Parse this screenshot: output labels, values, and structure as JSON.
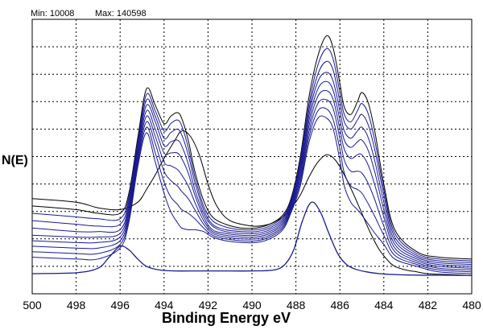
{
  "header": {
    "min_label": "Min: 10008",
    "max_label": "Max: 140598"
  },
  "chart_data": {
    "type": "line",
    "xlabel": "Binding Energy eV",
    "ylabel": "N(E)",
    "xlim": [
      500,
      480
    ],
    "ylim": [
      0,
      150000
    ],
    "x_reversed": true,
    "grid": true,
    "x_ticks": [
      500,
      498,
      496,
      494,
      492,
      490,
      488,
      486,
      484,
      482,
      480
    ],
    "line_colors": [
      "#000000",
      "#1a1a90"
    ],
    "series": [
      {
        "x": [
          500,
          498,
          497,
          496,
          495.2,
          494.8,
          494.4,
          494,
          493.5,
          493.2,
          492.8,
          492.4,
          492,
          491.6,
          491,
          490,
          489.4,
          489,
          488.6,
          488.2,
          487.8,
          487.4,
          487,
          486.6,
          486.2,
          485.8,
          485.4,
          485,
          484.6,
          484.2,
          483.8,
          483.5,
          483,
          482.5,
          482,
          481,
          480
        ],
        "y": [
          52000,
          50000,
          47000,
          46000,
          50000,
          57000,
          65000,
          74000,
          84000,
          89000,
          86000,
          76000,
          60000,
          48000,
          40000,
          37000,
          37500,
          39000,
          42000,
          47000,
          54000,
          64000,
          72000,
          76000,
          73000,
          65000,
          55000,
          44000,
          33000,
          24000,
          18000,
          15000,
          13000,
          12000,
          11000,
          10500,
          10000
        ]
      },
      {
        "x": [
          500,
          498,
          497,
          496,
          495.6,
          495.2,
          494.8,
          494.4,
          494,
          493.7,
          493.4,
          493.2,
          492.9,
          492.6,
          492.2,
          491.8,
          491.2,
          490.5,
          489.8,
          489.2,
          488.6,
          488.2,
          487.8,
          487.4,
          487,
          486.6,
          486.3,
          486,
          485.8,
          485.5,
          485.2,
          485,
          484.7,
          484.4,
          484,
          483.5,
          482.5,
          481.5,
          480
        ],
        "y": [
          48000,
          46000,
          44000,
          44000,
          55000,
          85000,
          112000,
          103000,
          93000,
          97000,
          99000,
          96000,
          84000,
          67000,
          51000,
          42000,
          38000,
          36000,
          36000,
          38000,
          43000,
          53000,
          75000,
          108000,
          130000,
          141000,
          134000,
          115000,
          102000,
          98000,
          105000,
          110000,
          104000,
          88000,
          60000,
          35000,
          23000,
          20000,
          19000
        ]
      },
      {
        "x": [
          500,
          498,
          497,
          496,
          495.6,
          495.2,
          494.8,
          494.4,
          494,
          493.7,
          493.4,
          493.2,
          492.9,
          492.6,
          492.2,
          491.8,
          491.2,
          490.5,
          489.8,
          489.2,
          488.6,
          488.2,
          487.8,
          487.4,
          487,
          486.6,
          486.3,
          486,
          485.8,
          485.5,
          485.2,
          485,
          484.7,
          484.4,
          484,
          483.5,
          482.5,
          481.5,
          480
        ],
        "y": [
          44000,
          42000,
          41000,
          41000,
          53000,
          83000,
          109000,
          100000,
          89000,
          93000,
          95000,
          92000,
          80000,
          64000,
          48000,
          40000,
          36500,
          35000,
          35000,
          37000,
          42000,
          52000,
          73000,
          104000,
          125000,
          134000,
          128000,
          110000,
          98000,
          94000,
          100000,
          104000,
          98000,
          83000,
          57000,
          33000,
          22000,
          19000,
          18000
        ]
      },
      {
        "x": [
          500,
          498,
          497,
          496,
          495.6,
          495.2,
          494.8,
          494.4,
          494,
          493.7,
          493.4,
          493.2,
          492.9,
          492.6,
          492.2,
          491.8,
          491.2,
          490.5,
          489.8,
          489.2,
          488.6,
          488.2,
          487.8,
          487.4,
          487,
          486.6,
          486.3,
          486,
          485.8,
          485.5,
          485.2,
          485,
          484.7,
          484.4,
          484,
          483.5,
          482.5,
          481.5,
          480
        ],
        "y": [
          40000,
          38000,
          37000,
          38000,
          51000,
          81000,
          106000,
          97000,
          85000,
          88000,
          90000,
          87000,
          76000,
          61000,
          46000,
          38000,
          35000,
          34000,
          34000,
          36000,
          41000,
          51000,
          71000,
          101000,
          120000,
          127000,
          122000,
          105000,
          94000,
          90000,
          95000,
          98000,
          92000,
          78000,
          54000,
          31000,
          21000,
          18000,
          17000
        ]
      },
      {
        "x": [
          500,
          498,
          497,
          496,
          495.6,
          495.2,
          494.8,
          494.4,
          494,
          493.7,
          493.4,
          493.2,
          492.9,
          492.6,
          492.2,
          491.8,
          491.2,
          490.5,
          489.8,
          489.2,
          488.6,
          488.2,
          487.8,
          487.4,
          487,
          486.6,
          486.3,
          486,
          485.8,
          485.5,
          485.2,
          485,
          484.7,
          484.4,
          484,
          483.5,
          482.5,
          481.5,
          480
        ],
        "y": [
          36000,
          34000,
          34000,
          35000,
          49000,
          79000,
          103000,
          94000,
          81000,
          83000,
          84000,
          81000,
          71000,
          57000,
          44000,
          37000,
          34000,
          33000,
          33000,
          35000,
          40000,
          50000,
          69000,
          98000,
          116000,
          121000,
          116000,
          100000,
          89000,
          85000,
          89000,
          91000,
          85000,
          72000,
          50000,
          29000,
          20000,
          17000,
          16000
        ]
      },
      {
        "x": [
          500,
          498,
          497,
          496,
          495.6,
          495.2,
          494.8,
          494.4,
          494,
          493.7,
          493.4,
          493.2,
          492.9,
          492.6,
          492.2,
          491.8,
          491.2,
          490.5,
          489.8,
          489.2,
          488.6,
          488.2,
          487.8,
          487.4,
          487,
          486.6,
          486.3,
          486,
          485.8,
          485.5,
          485.2,
          485,
          484.7,
          484.4,
          484,
          483.5,
          482.5,
          481.5,
          480
        ],
        "y": [
          32000,
          31000,
          31000,
          33000,
          47000,
          77000,
          100000,
          90000,
          77000,
          77000,
          77000,
          74000,
          66000,
          54000,
          42000,
          35000,
          33000,
          32000,
          32000,
          34000,
          39000,
          49000,
          67000,
          95000,
          112000,
          116000,
          111000,
          95000,
          84000,
          80000,
          83000,
          84000,
          78000,
          66000,
          46000,
          27000,
          19000,
          16000,
          15000
        ]
      },
      {
        "x": [
          500,
          498,
          497,
          496,
          495.6,
          495.2,
          494.8,
          494.4,
          494,
          493.7,
          493.4,
          493.2,
          492.9,
          492.6,
          492.2,
          491.8,
          491.2,
          490.5,
          489.8,
          489.2,
          488.6,
          488.2,
          487.8,
          487.4,
          487,
          486.6,
          486.3,
          486,
          485.8,
          485.5,
          485.2,
          485,
          484.7,
          484.4,
          484,
          483.5,
          482.5,
          481.5,
          480
        ],
        "y": [
          29000,
          28000,
          28000,
          31000,
          45000,
          75000,
          97000,
          86000,
          72000,
          70000,
          68000,
          65000,
          59000,
          50000,
          40000,
          34000,
          32000,
          31000,
          31000,
          33000,
          38000,
          48000,
          65000,
          92000,
          108000,
          111000,
          106000,
          90000,
          79000,
          74000,
          76000,
          76000,
          70000,
          59000,
          42000,
          25000,
          18000,
          15000,
          14000
        ]
      },
      {
        "x": [
          500,
          498,
          497,
          496,
          495.6,
          495.2,
          494.8,
          494.4,
          494,
          493.7,
          493.4,
          493.2,
          492.9,
          492.6,
          492.2,
          491.8,
          491.2,
          490.5,
          489.8,
          489.2,
          488.6,
          488.2,
          487.8,
          487.4,
          487,
          486.6,
          486.3,
          486,
          485.8,
          485.5,
          485.2,
          485,
          484.7,
          484.4,
          484,
          483.5,
          482.5,
          481.5,
          480
        ],
        "y": [
          26000,
          25000,
          25000,
          29000,
          43000,
          73000,
          94000,
          82000,
          67000,
          62000,
          59000,
          56000,
          52000,
          46000,
          38000,
          33000,
          31000,
          30000,
          30000,
          32000,
          37000,
          47000,
          63000,
          89000,
          104000,
          106000,
          101000,
          85000,
          73000,
          67000,
          67000,
          66000,
          60000,
          51000,
          37000,
          23000,
          17000,
          14000,
          13000
        ]
      },
      {
        "x": [
          500,
          498,
          497,
          496,
          495.6,
          495.2,
          494.8,
          494.4,
          494,
          493.7,
          493.4,
          493.2,
          492.9,
          492.6,
          492.2,
          491.8,
          491.2,
          490.5,
          489.8,
          489.2,
          488.6,
          488.2,
          487.8,
          487.4,
          487,
          486.6,
          486.3,
          486,
          485.8,
          485.5,
          485.2,
          485,
          484.7,
          484.4,
          484,
          483.5,
          482.5,
          481.5,
          480
        ],
        "y": [
          23000,
          22000,
          22000,
          27000,
          41000,
          71000,
          91000,
          77000,
          61000,
          53000,
          49000,
          46000,
          44000,
          41000,
          36000,
          32000,
          30000,
          29000,
          29000,
          31000,
          36000,
          46000,
          61000,
          86000,
          100000,
          101000,
          95000,
          79000,
          66000,
          59000,
          57000,
          55000,
          49000,
          42000,
          32000,
          21000,
          16000,
          13000,
          12000
        ]
      },
      {
        "x": [
          500,
          498,
          497,
          496,
          495.6,
          495.2,
          494.8,
          494.4,
          494,
          493.7,
          493.4,
          493.2,
          492.9,
          492.6,
          492.2,
          491.8,
          491.2,
          490.5,
          489.8,
          489.2,
          488.6,
          488.2,
          487.8,
          487.4,
          487,
          486.6,
          486.3,
          486,
          485.8,
          485.5,
          485.2,
          485,
          484.7,
          484.4,
          484,
          483.5,
          482.5,
          481.5,
          480
        ],
        "y": [
          20000,
          19000,
          19000,
          25000,
          39000,
          69000,
          88000,
          72000,
          55000,
          45000,
          39000,
          36000,
          35000,
          35000,
          34000,
          31000,
          29000,
          28000,
          28000,
          30000,
          35000,
          45000,
          59000,
          83000,
          96000,
          96000,
          90000,
          73000,
          59000,
          50000,
          46000,
          43000,
          38000,
          33000,
          27000,
          19000,
          15000,
          12000,
          11000
        ]
      },
      {
        "x": [
          500,
          498,
          497,
          496.5,
          496,
          495.6,
          495.2,
          494.8,
          494.2,
          493.5,
          492.5,
          491.5,
          490,
          489,
          488.5,
          488.1,
          487.7,
          487.3,
          486.9,
          486.5,
          486.1,
          485.7,
          485.3,
          484.8,
          484.2,
          483.5,
          482.5,
          481,
          480
        ],
        "y": [
          11000,
          11500,
          14000,
          20000,
          26000,
          24000,
          19000,
          15000,
          13000,
          12500,
          12500,
          12500,
          12500,
          13000,
          16000,
          24000,
          40000,
          50000,
          45000,
          33000,
          22000,
          16000,
          13500,
          12000,
          11000,
          10500,
          10200,
          10100,
          10008
        ]
      }
    ]
  }
}
